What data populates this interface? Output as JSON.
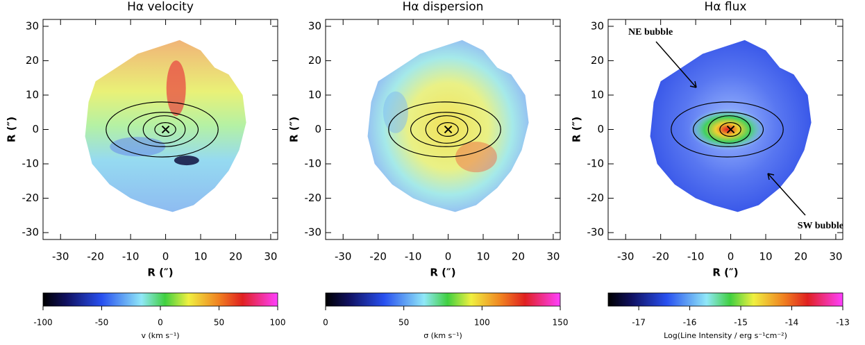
{
  "chart_data": [
    {
      "type": "image",
      "title": "Hα velocity",
      "xlabel": "R (″)",
      "ylabel": "R (″)",
      "xlim": [
        -35,
        32
      ],
      "ylim": [
        -32,
        32
      ],
      "xticks": [
        -30,
        -20,
        -10,
        0,
        10,
        20,
        30
      ],
      "yticks": [
        -30,
        -20,
        -10,
        0,
        10,
        20,
        30
      ],
      "colorbar": {
        "label": "v (km s⁻¹)",
        "clim": [
          -100,
          100
        ],
        "ticks": [
          -100,
          -50,
          0,
          50,
          100
        ]
      }
    },
    {
      "type": "image",
      "title": "Hα dispersion",
      "xlabel": "R (″)",
      "ylabel": "R (″)",
      "xlim": [
        -35,
        32
      ],
      "ylim": [
        -32,
        32
      ],
      "xticks": [
        -30,
        -20,
        -10,
        0,
        10,
        20,
        30
      ],
      "yticks": [
        -30,
        -20,
        -10,
        0,
        10,
        20,
        30
      ],
      "colorbar": {
        "label": "σ (km s⁻¹)",
        "clim": [
          0,
          150
        ],
        "ticks": [
          0,
          50,
          100,
          150
        ]
      }
    },
    {
      "type": "image",
      "title": "Hα flux",
      "xlabel": "R (″)",
      "ylabel": "R (″)",
      "xlim": [
        -35,
        32
      ],
      "ylim": [
        -32,
        32
      ],
      "xticks": [
        -30,
        -20,
        -10,
        0,
        10,
        20,
        30
      ],
      "yticks": [
        -30,
        -20,
        -10,
        0,
        10,
        20,
        30
      ],
      "colorbar": {
        "label": "Log(Line Intensity / erg s⁻¹cm⁻²)",
        "clim": [
          -17.6,
          -13
        ],
        "ticks": [
          -17,
          -16,
          -15,
          -14,
          -13
        ]
      },
      "annotations": [
        {
          "text": "NE bubble"
        },
        {
          "text": "SW bubble"
        }
      ]
    }
  ]
}
